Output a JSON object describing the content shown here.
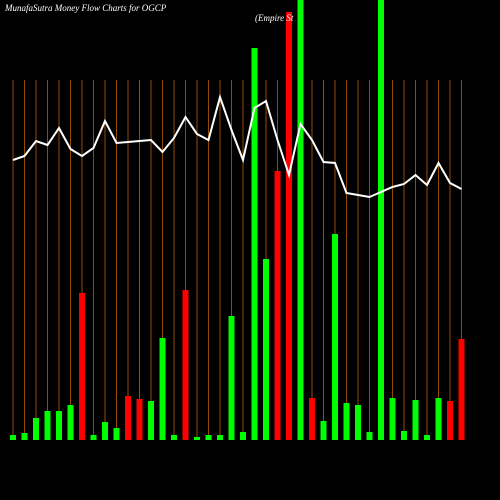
{
  "chart_data": {
    "type": "bar",
    "title": "MunafaSutra  Money Flow  Charts for OGCP",
    "subtitle": "(Empire  St",
    "categories": [
      null,
      null,
      null,
      null,
      null,
      null,
      null,
      null,
      null,
      null,
      null,
      null,
      null,
      null,
      null,
      null,
      null,
      null,
      null,
      null,
      null,
      null,
      null,
      null,
      null,
      null,
      null,
      null,
      null,
      null,
      null,
      null,
      null,
      null,
      null,
      null,
      null,
      null,
      null,
      null
    ],
    "series": [
      {
        "type": "bar",
        "values": [
          5,
          7,
          22,
          29,
          29,
          35,
          147,
          5,
          18,
          12,
          44,
          41,
          39,
          102,
          5,
          150,
          3,
          5,
          5,
          124,
          8,
          392,
          181,
          269,
          428,
          440,
          42,
          19,
          206,
          37,
          35,
          8,
          440,
          42,
          9,
          40,
          5,
          42,
          39,
          101
        ],
        "colors": [
          "#00ff00",
          "#00ff00",
          "#00ff00",
          "#00ff00",
          "#00ff00",
          "#00ff00",
          "#ff0000",
          "#00ff00",
          "#00ff00",
          "#00ff00",
          "#ff0000",
          "#ff0000",
          "#00ff00",
          "#00ff00",
          "#00ff00",
          "#ff0000",
          "#00ff00",
          "#00ff00",
          "#00ff00",
          "#00ff00",
          "#00ff00",
          "#00ff00",
          "#00ff00",
          "#ff0000",
          "#ff0000",
          "#00ff00",
          "#ff0000",
          "#00ff00",
          "#00ff00",
          "#00ff00",
          "#00ff00",
          "#00ff00",
          "#00ff00",
          "#00ff00",
          "#00ff00",
          "#00ff00",
          "#00ff00",
          "#00ff00",
          "#ff0000",
          "#ff0000"
        ]
      },
      {
        "type": "line",
        "color": "#ffffff",
        "values": [
          280,
          284,
          299,
          295,
          312,
          291,
          284,
          292,
          319,
          297,
          298,
          299,
          300,
          288,
          302,
          323,
          306,
          300,
          343,
          310,
          280,
          332,
          339,
          300,
          265,
          316,
          300,
          278,
          277,
          247,
          245,
          243,
          248,
          253,
          256,
          265,
          255,
          277,
          257,
          251
        ]
      }
    ],
    "ylim": [
      0,
      440
    ],
    "grid_color": "#b8600b"
  }
}
